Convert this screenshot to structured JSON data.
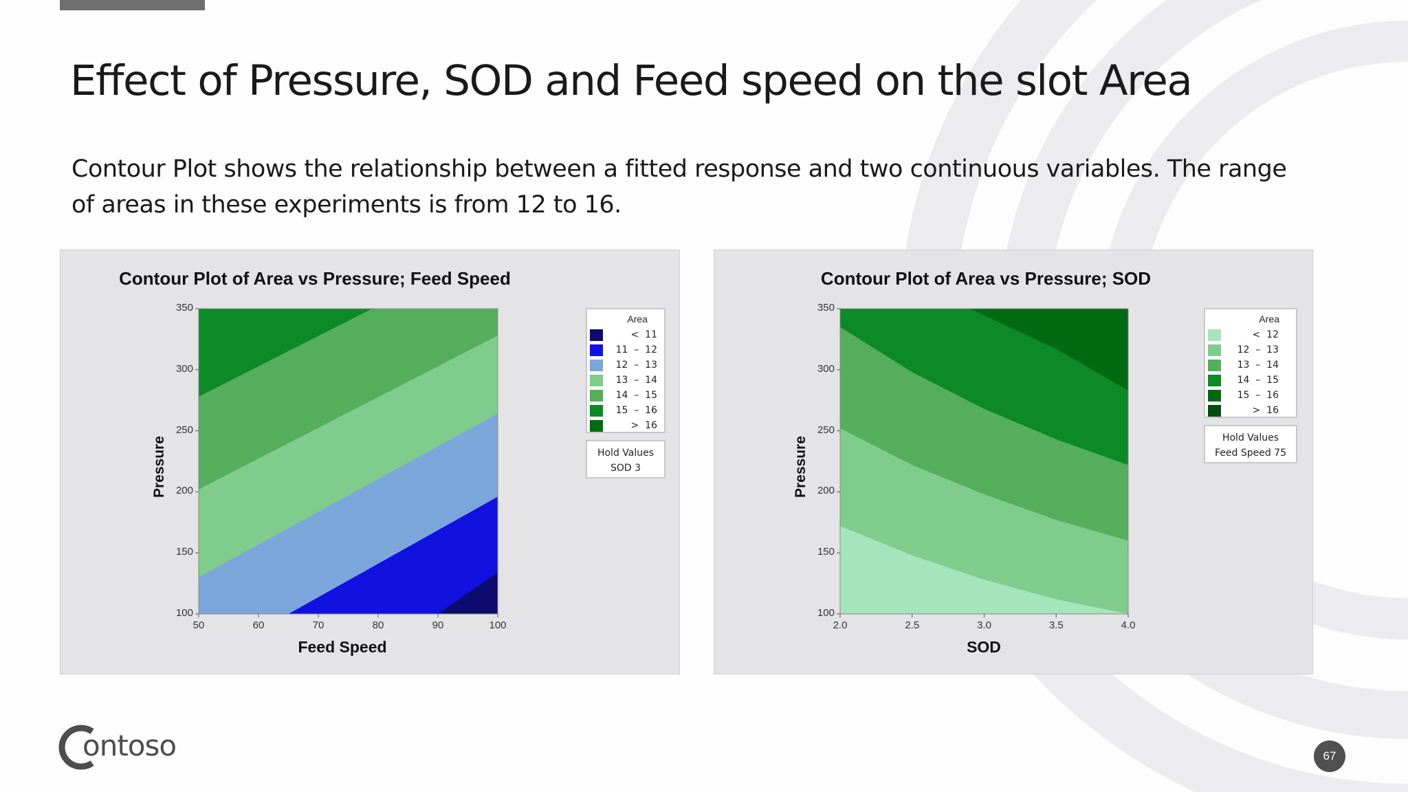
{
  "slide": {
    "title": "Effect of Pressure, SOD and Feed speed on the slot Area",
    "subtitle": "Contour Plot shows the relationship between a fitted response and two continuous variables. The range of areas in these experiments is from 12 to 16.",
    "logo_text": "ontoso",
    "page_number": "67",
    "accent": "#6e6e6e"
  },
  "chart_data": [
    {
      "type": "contour",
      "title": "Contour Plot of Area vs Pressure; Feed Speed",
      "xlabel": "Feed Speed",
      "ylabel": "Pressure",
      "xlim": [
        50,
        100
      ],
      "ylim": [
        100,
        350
      ],
      "x_ticks": [
        "50",
        "60",
        "70",
        "80",
        "90",
        "100"
      ],
      "y_ticks": [
        "100",
        "150",
        "200",
        "250",
        "300",
        "350"
      ],
      "legend": {
        "title": "Area",
        "entries": [
          {
            "label": "<  11",
            "color": "#0c0c6e"
          },
          {
            "label": "11  –  12",
            "color": "#1212e0"
          },
          {
            "label": "12  –  13",
            "color": "#7ba6d9"
          },
          {
            "label": "13  –  14",
            "color": "#80cc8c"
          },
          {
            "label": "14  –  15",
            "color": "#54ae5c"
          },
          {
            "label": "15  –  16",
            "color": "#0c8a28"
          },
          {
            "label": ">  16",
            "color": "#006a10"
          }
        ]
      },
      "hold_values": {
        "title": "Hold Values",
        "value": "SOD  3"
      },
      "contour_lines": [
        {
          "level": 11,
          "points": [
            [
              90,
              100
            ],
            [
              100,
              134
            ]
          ]
        },
        {
          "level": 12,
          "points": [
            [
              65,
              100
            ],
            [
              100,
              196
            ]
          ]
        },
        {
          "level": 13,
          "points": [
            [
              50,
              130
            ],
            [
              100,
              264
            ]
          ]
        },
        {
          "level": 14,
          "points": [
            [
              50,
              202
            ],
            [
              100,
              328
            ]
          ]
        },
        {
          "level": 15,
          "points": [
            [
              50,
              278
            ],
            [
              79,
              350
            ]
          ]
        }
      ]
    },
    {
      "type": "contour",
      "title": "Contour Plot of Area vs Pressure; SOD",
      "xlabel": "SOD",
      "ylabel": "Pressure",
      "xlim": [
        2.0,
        4.0
      ],
      "ylim": [
        100,
        350
      ],
      "x_ticks": [
        "2.0",
        "2.5",
        "3.0",
        "3.5",
        "4.0"
      ],
      "y_ticks": [
        "100",
        "150",
        "200",
        "250",
        "300",
        "350"
      ],
      "legend": {
        "title": "Area",
        "entries": [
          {
            "label": "<  12",
            "color": "#a5e5bb"
          },
          {
            "label": "12  –  13",
            "color": "#80cc8c"
          },
          {
            "label": "13  –  14",
            "color": "#54ae5c"
          },
          {
            "label": "14  –  15",
            "color": "#0c8a28"
          },
          {
            "label": "15  –  16",
            "color": "#006a10"
          },
          {
            "label": ">  16",
            "color": "#044d0c"
          }
        ]
      },
      "hold_values": {
        "title": "Hold Values",
        "value": "Feed Speed  75"
      },
      "contour_lines": [
        {
          "level": 12,
          "points": [
            [
              2.0,
              172
            ],
            [
              2.5,
              148
            ],
            [
              3.0,
              128
            ],
            [
              3.5,
              112
            ],
            [
              4.0,
              100
            ]
          ]
        },
        {
          "level": 13,
          "points": [
            [
              2.0,
              252
            ],
            [
              2.5,
              222
            ],
            [
              3.0,
              198
            ],
            [
              3.5,
              177
            ],
            [
              4.0,
              160
            ]
          ]
        },
        {
          "level": 14,
          "points": [
            [
              2.0,
              335
            ],
            [
              2.5,
              298
            ],
            [
              3.0,
              268
            ],
            [
              3.5,
              243
            ],
            [
              4.0,
              222
            ]
          ]
        },
        {
          "level": 15,
          "points": [
            [
              2.0,
              350
            ],
            [
              2.5,
              350
            ],
            [
              2.9,
              350
            ],
            [
              3.5,
              317
            ],
            [
              4.0,
              283
            ]
          ]
        },
        {
          "level": 16,
          "points": [
            [
              3.0,
              350
            ],
            [
              4.0,
              350
            ]
          ]
        }
      ]
    }
  ]
}
